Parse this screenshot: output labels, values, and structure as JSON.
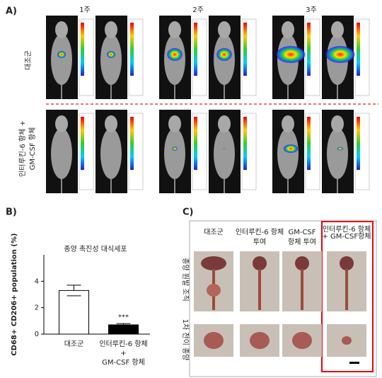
{
  "panel_a": {
    "label": "A)",
    "weeks": [
      "1주",
      "2주",
      "3주"
    ],
    "row_labels": [
      [
        "대조군"
      ],
      [
        "인터루킨-6 항체 +",
        "GM-CSF 항체"
      ]
    ]
  },
  "chart_data": {
    "type": "bar",
    "label": "B)",
    "title": "종양 촉진성 대식세포",
    "y_label": "CD68+ CD206+ population (%)",
    "categories": [
      [
        "대조군"
      ],
      [
        "인터루킨-6 항체",
        "+",
        "GM-CSF 항체"
      ]
    ],
    "values": [
      3.3,
      0.7
    ],
    "errors": [
      0.4,
      0.1
    ],
    "colors": [
      "#ffffff",
      "#000000"
    ],
    "ylim": [
      0,
      6
    ],
    "yticks": [
      0,
      2,
      4
    ],
    "annotations": [
      {
        "text": "***",
        "category": 1
      }
    ]
  },
  "panel_c": {
    "label": "C)",
    "columns": [
      [
        "대조군"
      ],
      [
        "인터루킨-6 항체",
        "투여"
      ],
      [
        "GM-CSF",
        "항체 투여"
      ],
      [
        "인터루킨-6 항체",
        "+ GM-CSF항체"
      ]
    ],
    "row_labels": [
      "종양 원발 조직",
      "1차 전이 종양"
    ]
  }
}
